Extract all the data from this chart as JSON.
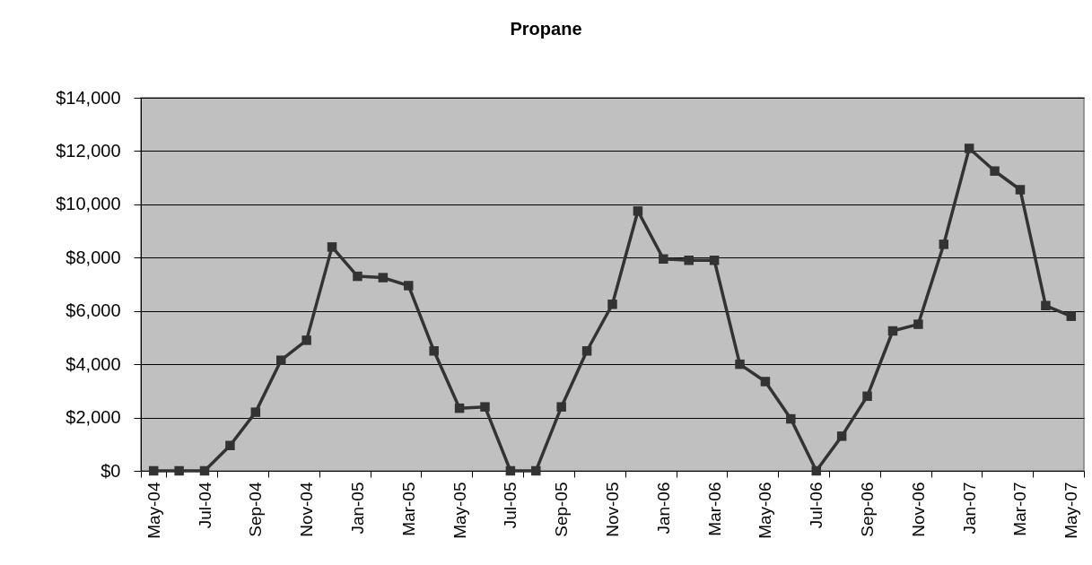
{
  "chart_data": {
    "type": "line",
    "title": "Propane",
    "categories": [
      "May-04",
      null,
      "Jul-04",
      null,
      "Sep-04",
      null,
      "Nov-04",
      null,
      "Jan-05",
      null,
      "Mar-05",
      null,
      "May-05",
      null,
      "Jul-05",
      null,
      "Sep-05",
      null,
      "Nov-05",
      null,
      "Jan-06",
      null,
      "Mar-06",
      null,
      "May-06",
      null,
      "Jul-06",
      null,
      "Sep-06",
      null,
      "Nov-06",
      null,
      "Jan-07",
      null,
      "Mar-07",
      null,
      "May-07"
    ],
    "series": [
      {
        "color": "#333333",
        "values": [
          0,
          0,
          0,
          950,
          2200,
          4150,
          4900,
          8400,
          7300,
          7250,
          6950,
          4500,
          2350,
          2400,
          0,
          0,
          2400,
          4500,
          6250,
          9750,
          7950,
          7900,
          7900,
          4000,
          3350,
          1950,
          0,
          1300,
          2800,
          5250,
          5500,
          8500,
          12100,
          11250,
          10550,
          6200,
          5800
        ]
      }
    ],
    "ylim": [
      0,
      14000
    ],
    "yticks": [
      {
        "value": 0,
        "label": "$0"
      },
      {
        "value": 2000,
        "label": "$2,000"
      },
      {
        "value": 4000,
        "label": "$4,000"
      },
      {
        "value": 6000,
        "label": "$6,000"
      },
      {
        "value": 8000,
        "label": "$8,000"
      },
      {
        "value": 10000,
        "label": "$10,000"
      },
      {
        "value": 12000,
        "label": "$12,000"
      },
      {
        "value": 14000,
        "label": "$14,000"
      }
    ],
    "grid": "y",
    "marker": "square",
    "line_style": "solid"
  }
}
